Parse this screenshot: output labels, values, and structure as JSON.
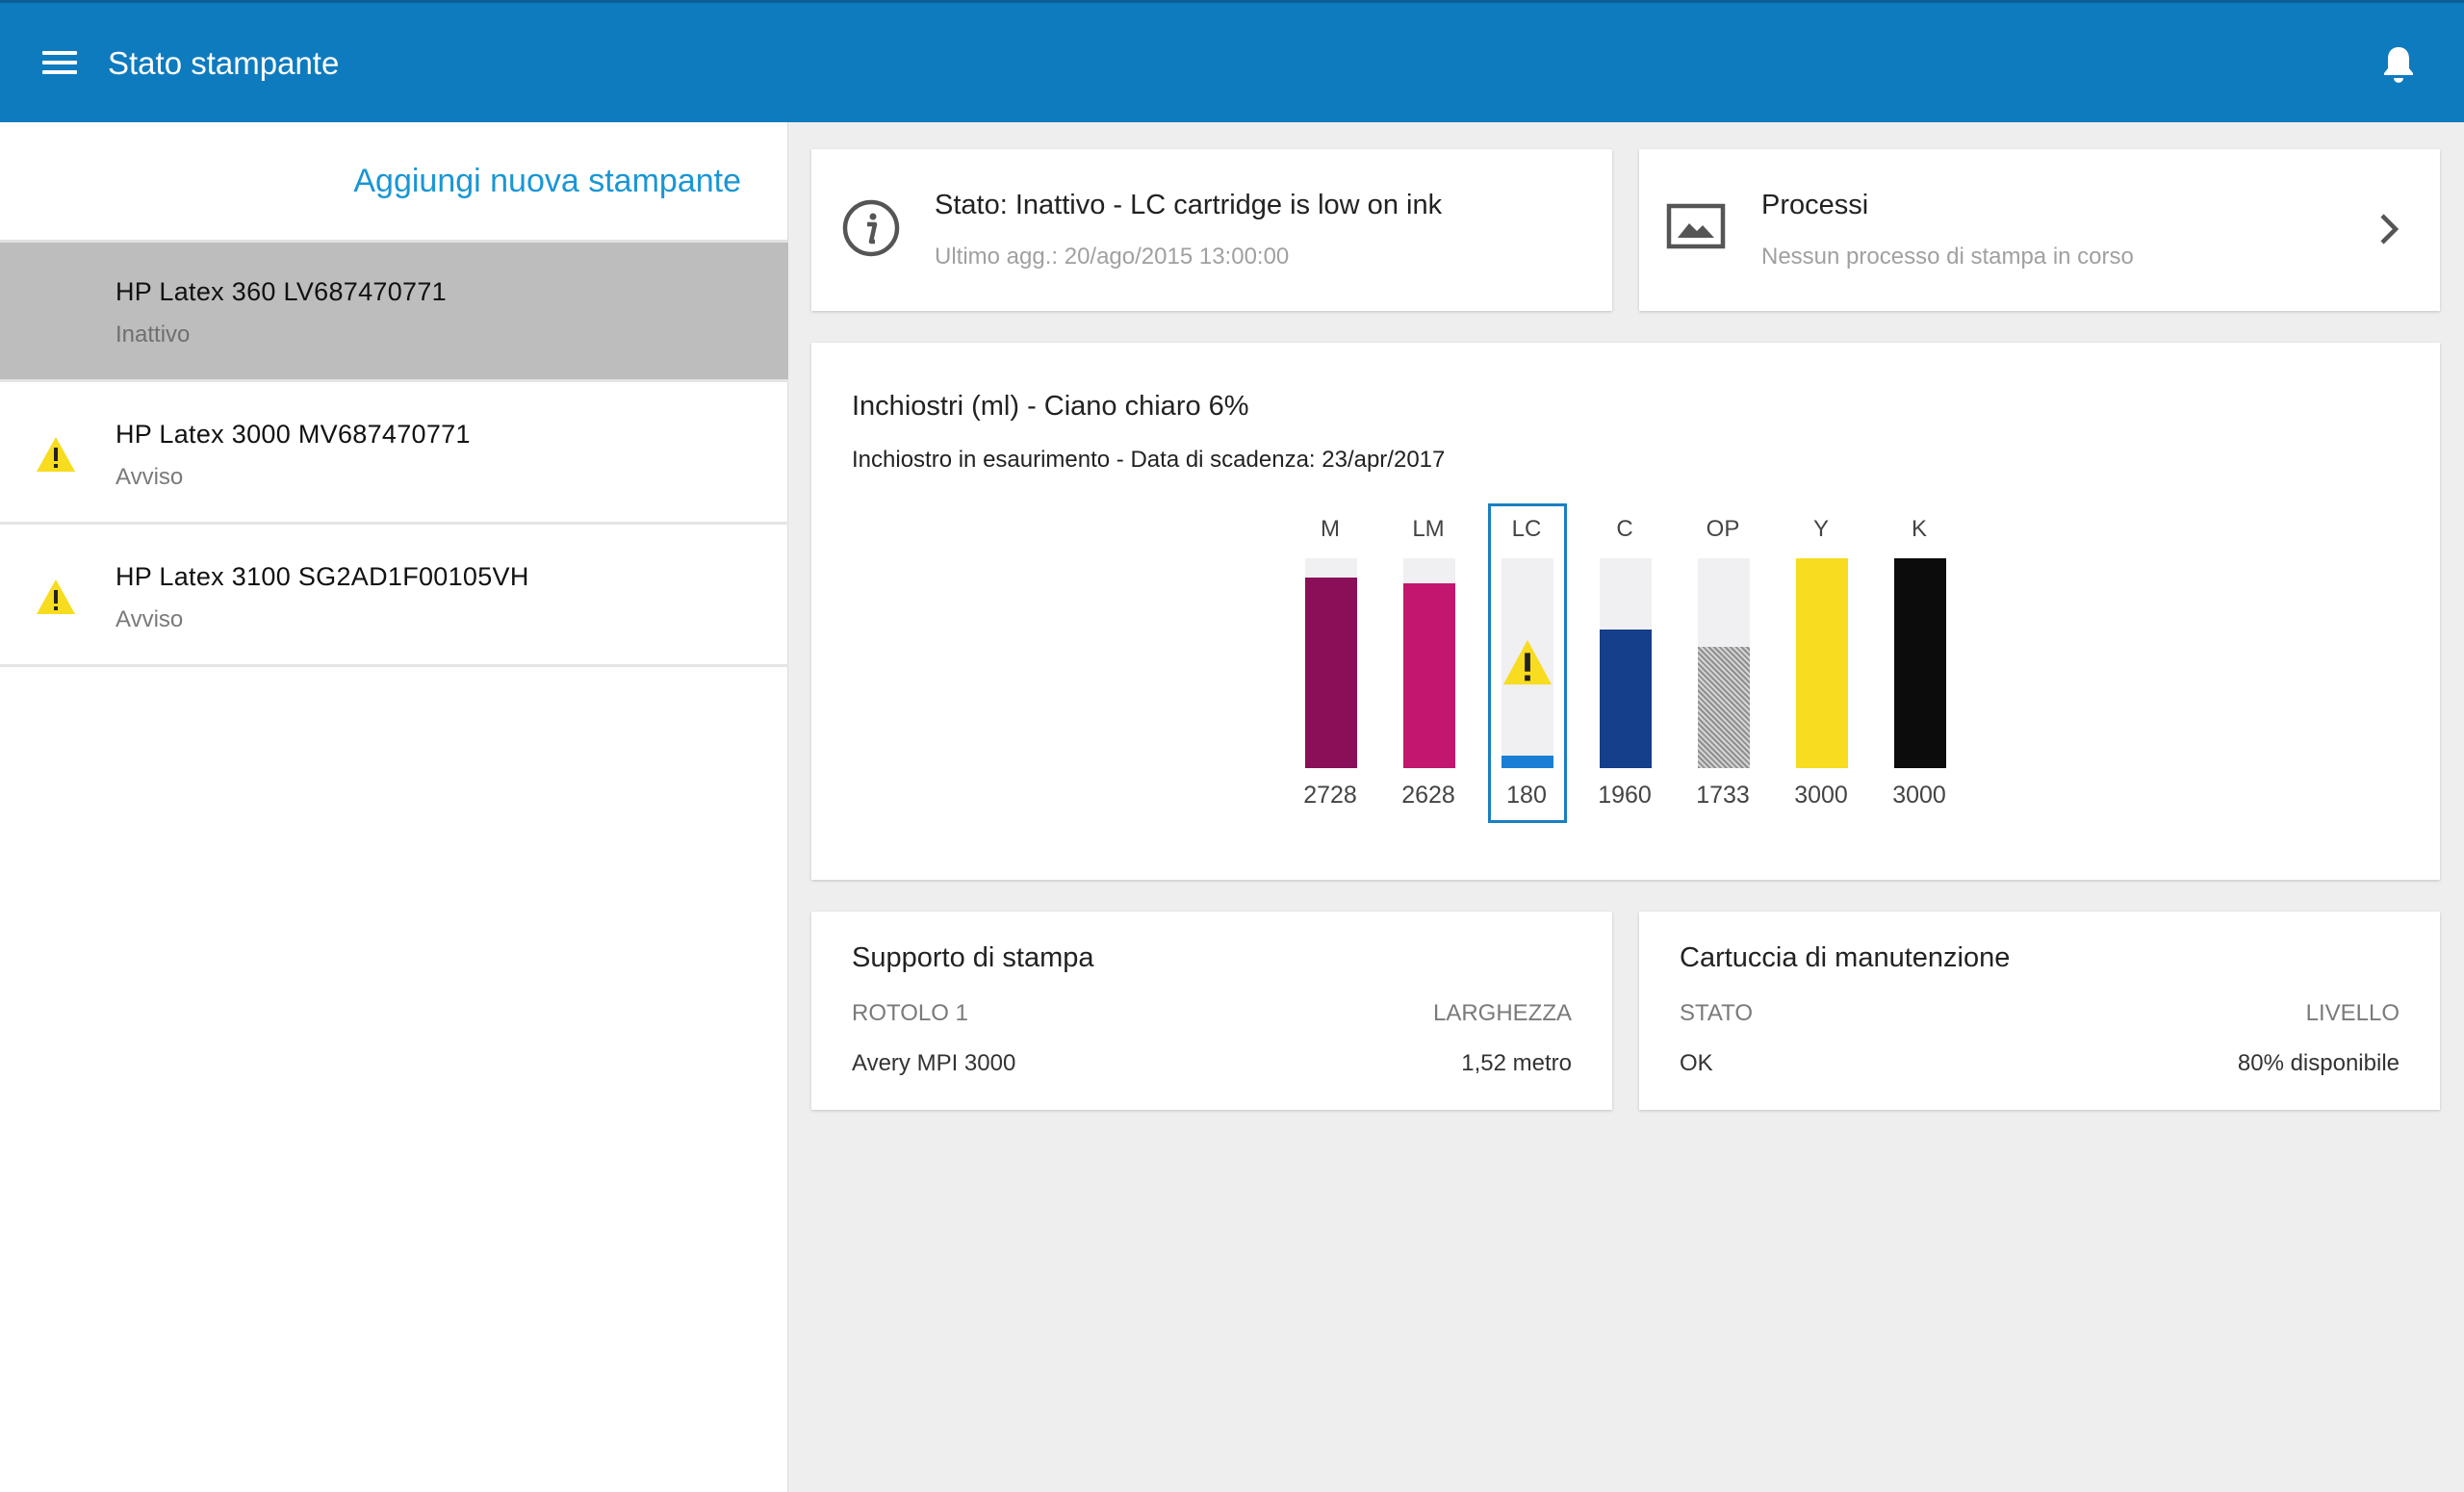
{
  "header": {
    "title": "Stato stampante",
    "menu_icon": "hamburger-menu-icon",
    "bell_icon": "bell-icon"
  },
  "sidebar": {
    "add_printer": "Aggiungi nuova stampante",
    "printers": [
      {
        "name": "HP Latex 360 LV687470771",
        "status": "Inattivo",
        "selected": true
      },
      {
        "name": "HP Latex 3000 MV687470771",
        "status": "Avviso",
        "icon": "warning-icon"
      },
      {
        "name": "HP Latex 3100 SG2AD1F00105VH",
        "status": "Avviso",
        "icon": "warning-icon"
      }
    ]
  },
  "status_card": {
    "title": "Stato: Inattivo - LC cartridge is low on ink",
    "updated": "Ultimo agg.: 20/ago/2015 13:00:00",
    "icon": "info-icon"
  },
  "jobs_card": {
    "title": "Processi",
    "subtitle": "Nessun processo di stampa in corso",
    "icon": "image-icon",
    "chevron": "chevron-right-icon"
  },
  "inks_card": {
    "title": "Inchiostri (ml) - Ciano chiaro 6%",
    "subtitle": "Inchiostro in esaurimento - Data di scadenza: 23/apr/2017",
    "colors": {
      "M": "#8b0f58",
      "LM": "#c2166f",
      "LC": "#1a7fd4",
      "C": "#153f8a",
      "OP": "#b0b0b0",
      "Y": "#f7dc1f",
      "K": "#0c0c0c",
      "warning": "#f7dc1f",
      "highlight": "#1a7fc1"
    }
  },
  "chart_data": {
    "type": "bar",
    "categories": [
      "M",
      "LM",
      "LC",
      "C",
      "OP",
      "Y",
      "K"
    ],
    "values": [
      2728,
      2628,
      180,
      1960,
      1733,
      3000,
      3000
    ],
    "fill_fraction": [
      0.91,
      0.88,
      0.06,
      0.66,
      0.58,
      1.0,
      1.0
    ],
    "highlighted": "LC",
    "title": "Inchiostri (ml) - Ciano chiaro 6%",
    "xlabel": "",
    "ylabel": ""
  },
  "media_card": {
    "title": "Supporto di stampa",
    "col1_label": "ROTOLO 1",
    "col2_label": "LARGHEZZA",
    "col1_value": "Avery MPI 3000",
    "col2_value": "1,52 metro"
  },
  "maintenance_card": {
    "title": "Cartuccia di manutenzione",
    "col1_label": "STATO",
    "col2_label": "LIVELLO",
    "col1_value": "OK",
    "col2_value": "80% disponibile"
  }
}
